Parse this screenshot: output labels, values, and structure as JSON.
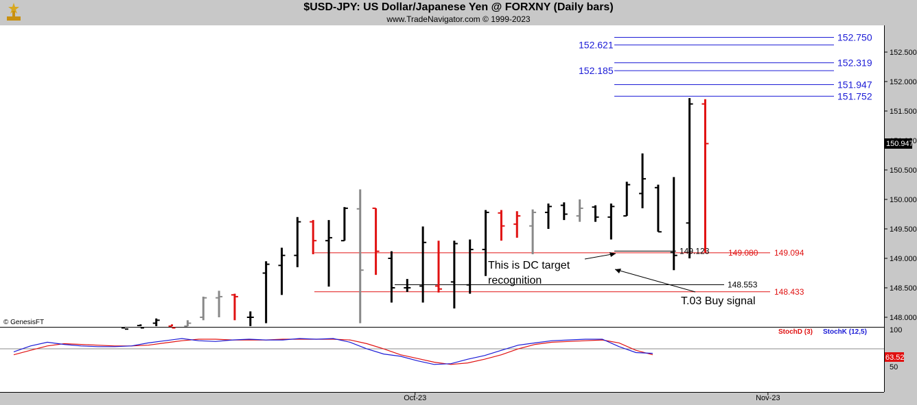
{
  "header": {
    "title": "$USD-JPY:  US Dollar/Japanese Yen @ FORXNY  (Daily bars)",
    "subtitle": "www.TradeNavigator.com © 1999-2023"
  },
  "watermark": "© GenesisFT",
  "colors": {
    "up": "#000000",
    "down": "#e01010",
    "neutral": "#888888",
    "blue": "#1a1ad6",
    "red": "#e01010"
  },
  "chart_data": [
    {
      "type": "ohlc",
      "title": "$USD-JPY:  US Dollar/Japanese Yen @ FORXNY  (Daily bars)",
      "ylim": [
        147.85,
        152.85
      ],
      "yticks": [
        "148.000",
        "148.500",
        "149.000",
        "149.500",
        "150.000",
        "150.500",
        "151.000",
        "151.500",
        "152.000",
        "152.500"
      ],
      "last_price": "150.947",
      "xlabels": [
        {
          "label": "Oct-23",
          "bar": 18.5
        },
        {
          "label": "Nov-23",
          "bar": 41
        }
      ],
      "bars": [
        {
          "o": 147.82,
          "h": 147.85,
          "l": 147.75,
          "c": 147.8,
          "col": "up"
        },
        {
          "o": 147.86,
          "h": 147.88,
          "l": 147.75,
          "c": 147.82,
          "col": "up"
        },
        {
          "o": 147.9,
          "h": 147.98,
          "l": 147.8,
          "c": 147.95,
          "col": "up"
        },
        {
          "o": 147.85,
          "h": 147.88,
          "l": 147.78,
          "c": 147.82,
          "col": "down"
        },
        {
          "o": 147.85,
          "h": 147.95,
          "l": 147.78,
          "c": 147.9,
          "col": "neutral"
        },
        {
          "o": 148.0,
          "h": 148.35,
          "l": 147.95,
          "c": 148.33,
          "col": "neutral"
        },
        {
          "o": 148.33,
          "h": 148.45,
          "l": 148.0,
          "c": 148.35,
          "col": "neutral"
        },
        {
          "o": 148.38,
          "h": 148.4,
          "l": 147.95,
          "c": 148.35,
          "col": "down"
        },
        {
          "o": 148.0,
          "h": 148.1,
          "l": 147.85,
          "c": 148.0,
          "col": "up"
        },
        {
          "o": 148.75,
          "h": 148.95,
          "l": 147.9,
          "c": 148.9,
          "col": "up"
        },
        {
          "o": 148.88,
          "h": 149.18,
          "l": 148.38,
          "c": 149.05,
          "col": "up"
        },
        {
          "o": 149.05,
          "h": 149.7,
          "l": 148.85,
          "c": 149.62,
          "col": "up"
        },
        {
          "o": 149.62,
          "h": 149.65,
          "l": 149.07,
          "c": 149.3,
          "col": "down"
        },
        {
          "o": 149.3,
          "h": 149.65,
          "l": 148.52,
          "c": 149.35,
          "col": "up"
        },
        {
          "o": 149.3,
          "h": 149.87,
          "l": 149.3,
          "c": 149.85,
          "col": "up"
        },
        {
          "o": 149.84,
          "h": 150.17,
          "l": 147.9,
          "c": 148.8,
          "col": "neutral"
        },
        {
          "o": 149.85,
          "h": 149.85,
          "l": 148.72,
          "c": 149.12,
          "col": "down"
        },
        {
          "o": 149.0,
          "h": 149.12,
          "l": 148.25,
          "c": 148.5,
          "col": "up"
        },
        {
          "o": 148.5,
          "h": 148.65,
          "l": 148.43,
          "c": 148.5,
          "col": "up"
        },
        {
          "o": 148.53,
          "h": 149.54,
          "l": 148.25,
          "c": 149.27,
          "col": "up"
        },
        {
          "o": 148.53,
          "h": 149.3,
          "l": 148.42,
          "c": 148.48,
          "col": "down"
        },
        {
          "o": 148.6,
          "h": 149.3,
          "l": 148.15,
          "c": 149.25,
          "col": "up"
        },
        {
          "o": 148.55,
          "h": 149.32,
          "l": 148.4,
          "c": 149.15,
          "col": "up"
        },
        {
          "o": 149.15,
          "h": 149.82,
          "l": 148.7,
          "c": 149.78,
          "col": "up"
        },
        {
          "o": 149.77,
          "h": 149.82,
          "l": 149.3,
          "c": 149.55,
          "col": "down"
        },
        {
          "o": 149.58,
          "h": 149.8,
          "l": 149.35,
          "c": 149.72,
          "col": "down"
        },
        {
          "o": 149.55,
          "h": 149.83,
          "l": 149.07,
          "c": 149.78,
          "col": "neutral"
        },
        {
          "o": 149.78,
          "h": 149.93,
          "l": 149.5,
          "c": 149.88,
          "col": "up"
        },
        {
          "o": 149.9,
          "h": 149.95,
          "l": 149.65,
          "c": 149.75,
          "col": "up"
        },
        {
          "o": 149.72,
          "h": 150.0,
          "l": 149.62,
          "c": 149.85,
          "col": "neutral"
        },
        {
          "o": 149.87,
          "h": 149.9,
          "l": 149.62,
          "c": 149.7,
          "col": "up"
        },
        {
          "o": 149.7,
          "h": 149.93,
          "l": 149.32,
          "c": 149.88,
          "col": "up"
        },
        {
          "o": 149.72,
          "h": 150.3,
          "l": 149.72,
          "c": 150.25,
          "col": "up"
        },
        {
          "o": 150.1,
          "h": 150.78,
          "l": 149.85,
          "c": 150.35,
          "col": "up"
        },
        {
          "o": 150.2,
          "h": 150.25,
          "l": 149.45,
          "c": 149.45,
          "col": "up"
        },
        {
          "o": 149.1,
          "h": 150.38,
          "l": 148.8,
          "c": 149.05,
          "col": "up"
        },
        {
          "o": 149.6,
          "h": 151.72,
          "l": 149.0,
          "c": 151.62,
          "col": "up"
        },
        {
          "o": 151.62,
          "h": 151.7,
          "l": 149.1,
          "c": 150.947,
          "col": "down"
        }
      ],
      "levels_blue": [
        {
          "value": 152.75,
          "label": "152.750",
          "side": "right"
        },
        {
          "value": 152.621,
          "label": "152.621",
          "side": "left"
        },
        {
          "value": 152.319,
          "label": "152.319",
          "side": "right"
        },
        {
          "value": 152.185,
          "label": "152.185",
          "side": "left"
        },
        {
          "value": 151.947,
          "label": "151.947",
          "side": "right"
        },
        {
          "value": 151.752,
          "label": "151.752",
          "side": "right"
        }
      ],
      "levels_red": [
        {
          "value": 149.094,
          "label": "149.094"
        },
        {
          "value": 148.433,
          "label": "148.433"
        }
      ],
      "levels_black": [
        {
          "value": 149.123,
          "label": "149.123"
        },
        {
          "value": 148.553,
          "label": "148.553"
        }
      ],
      "level_label_red_extra": "149.080",
      "annotations": [
        {
          "text": "This is DC target",
          "line": 1
        },
        {
          "text": "recognition",
          "line": 2
        },
        {
          "text": "T.03 Buy signal",
          "line": 3
        }
      ]
    },
    {
      "type": "line",
      "title": "",
      "ylim": [
        40,
        100
      ],
      "yticks": [
        "100",
        "50"
      ],
      "last_value": "63.52",
      "legend": [
        "StochD (3)",
        "StochK (12,5)"
      ],
      "series": [
        {
          "name": "StochD (3)",
          "color": "#e01010",
          "values": [
            66,
            72,
            78,
            81,
            80,
            79,
            78,
            78,
            79,
            82,
            85,
            87,
            87,
            86,
            86,
            86,
            87,
            87,
            87,
            87,
            86,
            81,
            74,
            66,
            61,
            56,
            53,
            55,
            60,
            66,
            74,
            80,
            83,
            84,
            85,
            86,
            82,
            72,
            66
          ]
        },
        {
          "name": "StochK (12,5)",
          "color": "#1a1ad6",
          "values": [
            70,
            78,
            83,
            80,
            78,
            77,
            77,
            78,
            82,
            85,
            88,
            85,
            84,
            86,
            87,
            86,
            86,
            88,
            87,
            88,
            83,
            74,
            67,
            64,
            58,
            53,
            54,
            60,
            65,
            72,
            79,
            82,
            85,
            86,
            87,
            87,
            77,
            69,
            68
          ]
        }
      ]
    }
  ]
}
